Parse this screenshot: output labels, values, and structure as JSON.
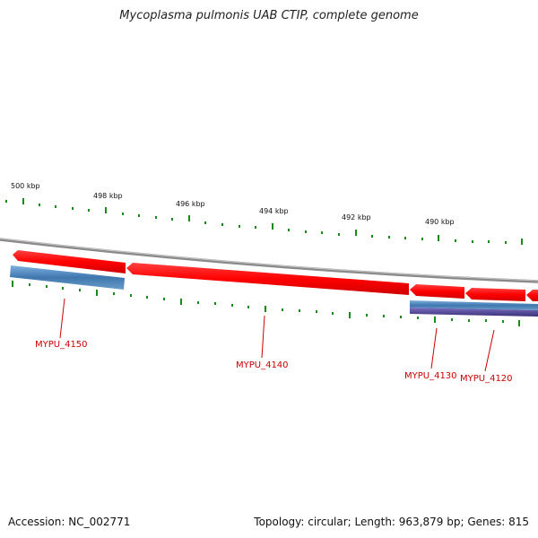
{
  "title": "Mycoplasma pulmonis UAB CTIP, complete genome",
  "footer": {
    "accession": "Accession: NC_002771",
    "summary": "Topology: circular; Length: 963,879 bp; Genes: 815"
  },
  "colors": {
    "backbone": "#8a8a8a",
    "gene": "#ff0000",
    "cds_blue": "#3f78ae",
    "cds_purple": "#4b3f8e",
    "tick": "#1a8a1a",
    "label": "#cc0000"
  },
  "scale": {
    "labels": [
      "500 kbp",
      "498 kbp",
      "496 kbp",
      "494 kbp",
      "492 kbp",
      "490 kbp"
    ],
    "positions_kbp": [
      500,
      498,
      496,
      494,
      492,
      490
    ]
  },
  "features": [
    {
      "locus": "MYPU_4150"
    },
    {
      "locus": "MYPU_4140"
    },
    {
      "locus": "MYPU_4130"
    },
    {
      "locus": "MYPU_4120"
    }
  ]
}
